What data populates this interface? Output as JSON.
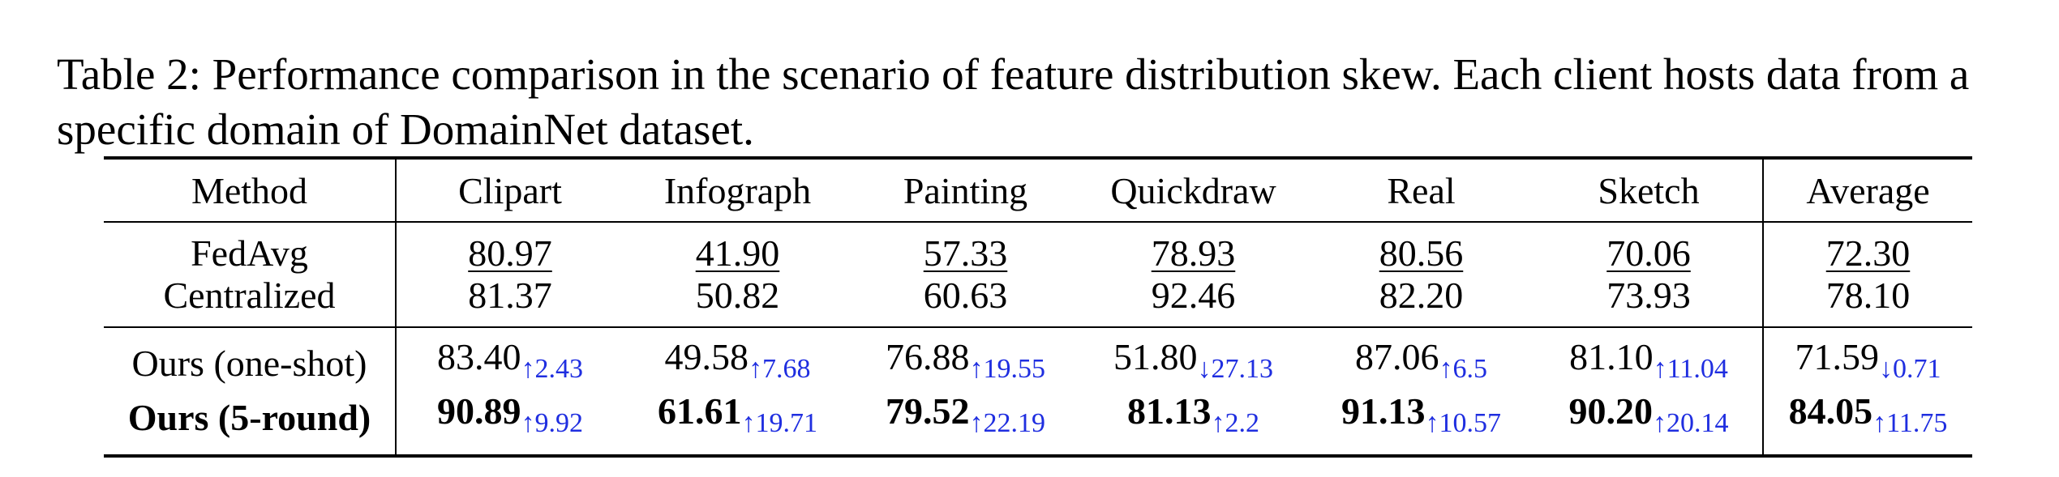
{
  "caption": "Table 2: Performance comparison in the scenario of feature distribution skew. Each client hosts data from a specific domain of DomainNet dataset.",
  "colors": {
    "delta": "#1f2ee0"
  },
  "table": {
    "headers": [
      "Method",
      "Clipart",
      "Infograph",
      "Painting",
      "Quickdraw",
      "Real",
      "Sketch",
      "Average"
    ],
    "baselines": [
      {
        "method": "FedAvg",
        "values": [
          "80.97",
          "41.90",
          "57.33",
          "78.93",
          "80.56",
          "70.06",
          "72.30"
        ]
      },
      {
        "method": "Centralized",
        "values": [
          "81.37",
          "50.82",
          "60.63",
          "92.46",
          "82.20",
          "73.93",
          "78.10"
        ]
      }
    ],
    "ours": [
      {
        "method": "Ours (one-shot)",
        "values": [
          "83.40",
          "49.58",
          "76.88",
          "51.80",
          "87.06",
          "81.10",
          "71.59"
        ],
        "deltas": [
          "↑2.43",
          "↑7.68",
          "↑19.55",
          "↓27.13",
          "↑6.5",
          "↑11.04",
          "↓0.71"
        ]
      },
      {
        "method": "Ours (5-round)",
        "values": [
          "90.89",
          "61.61",
          "79.52",
          "81.13",
          "91.13",
          "90.20",
          "84.05"
        ],
        "deltas": [
          "↑9.92",
          "↑19.71",
          "↑22.19",
          "↑2.2",
          "↑10.57",
          "↑20.14",
          "↑11.75"
        ]
      }
    ]
  }
}
